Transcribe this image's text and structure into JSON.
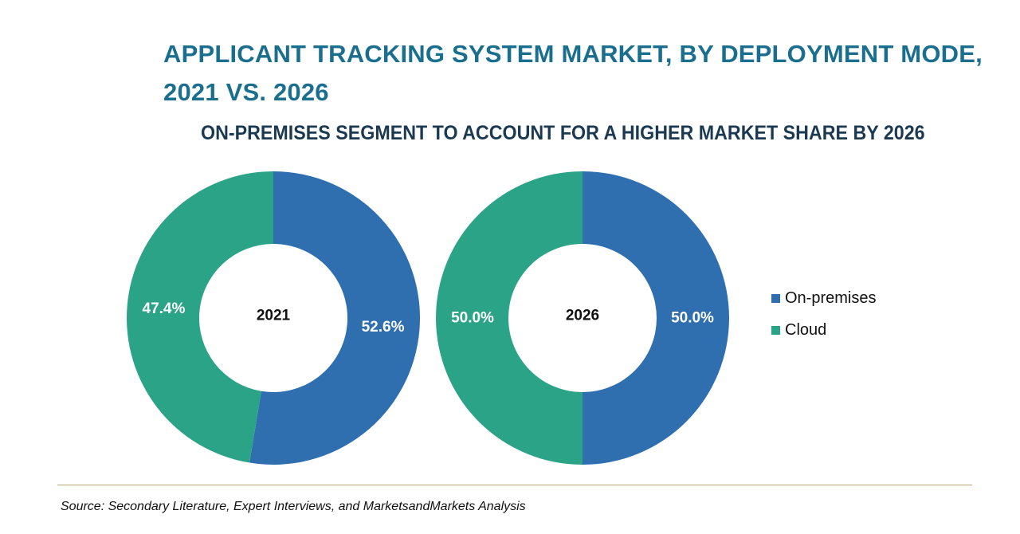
{
  "chart_data": {
    "type": "donut",
    "title": "APPLICANT TRACKING SYSTEM MARKET, BY DEPLOYMENT MODE, 2021 VS. 2026",
    "subtitle": "ON-PREMISES SEGMENT TO ACCOUNT FOR A HIGHER MARKET SHARE BY 2026",
    "legend_position": "right",
    "series_names": [
      "On-premises",
      "Cloud"
    ],
    "colors": {
      "On-premises": "#2f6fb0",
      "Cloud": "#2ba386"
    },
    "charts": [
      {
        "center_label": "2021",
        "slices": [
          {
            "name": "On-premises",
            "value": 52.6,
            "label": "52.6%"
          },
          {
            "name": "Cloud",
            "value": 47.4,
            "label": "47.4%"
          }
        ]
      },
      {
        "center_label": "2026",
        "slices": [
          {
            "name": "On-premises",
            "value": 50.0,
            "label": "50.0%"
          },
          {
            "name": "Cloud",
            "value": 50.0,
            "label": "50.0%"
          }
        ]
      }
    ]
  },
  "source": "Source: Secondary Literature, Expert Interviews, and MarketsandMarkets Analysis"
}
